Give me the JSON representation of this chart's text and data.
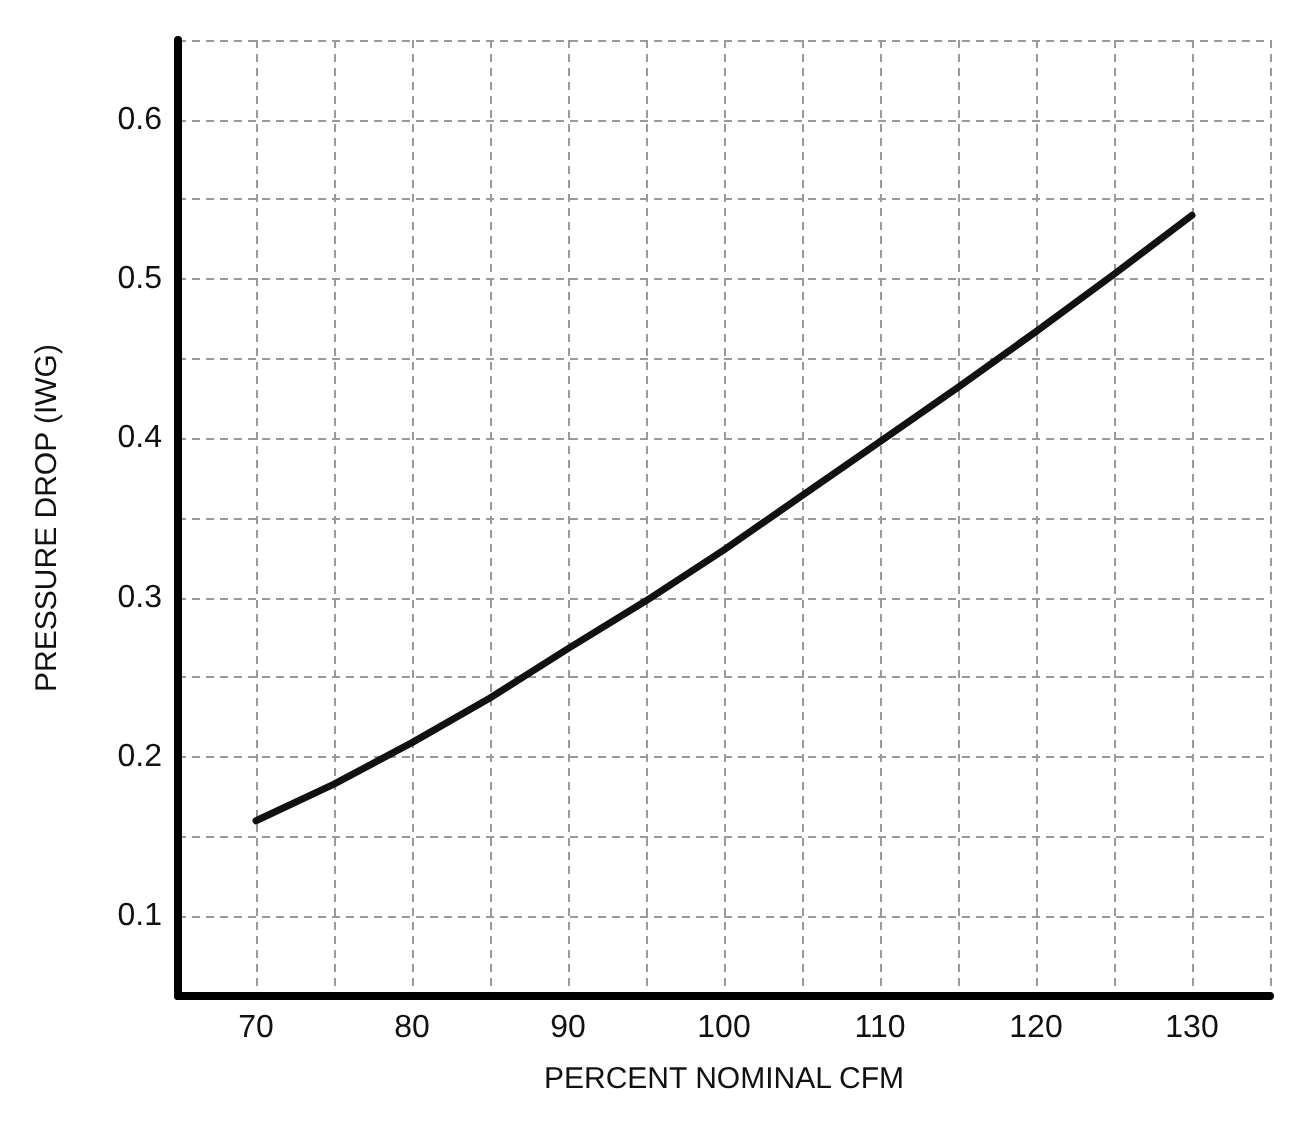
{
  "chart_data": {
    "type": "line",
    "xlabel": "PERCENT NOMINAL CFM",
    "ylabel": "PRESSURE DROP (IWG)",
    "x": [
      70,
      75,
      80,
      85,
      90,
      95,
      100,
      105,
      110,
      115,
      120,
      125,
      130
    ],
    "series": [
      {
        "color": "#111111",
        "values": [
          0.16,
          0.183,
          0.209,
          0.237,
          0.268,
          0.298,
          0.33,
          0.364,
          0.398,
          0.432,
          0.467,
          0.503,
          0.54
        ]
      }
    ],
    "xlim": [
      65,
      135
    ],
    "xticks": [
      {
        "value": 65,
        "label": null
      },
      70,
      {
        "value": 75,
        "label": null
      },
      80,
      {
        "value": 85,
        "label": null
      },
      90,
      {
        "value": 95,
        "label": null
      },
      100,
      {
        "value": 105,
        "label": null
      },
      110,
      {
        "value": 115,
        "label": null
      },
      120,
      {
        "value": 125,
        "label": null
      },
      130,
      {
        "value": 135,
        "label": null
      }
    ],
    "ylim": [
      0.05,
      0.65
    ],
    "yticks": [
      {
        "value": 0.05,
        "label": null
      },
      0.1,
      {
        "value": 0.15,
        "label": null
      },
      0.2,
      {
        "value": 0.25,
        "label": null
      },
      0.3,
      {
        "value": 0.35,
        "label": null
      },
      0.4,
      {
        "value": 0.45,
        "label": null
      },
      0.5,
      {
        "value": 0.55,
        "label": null
      },
      0.6,
      {
        "value": 0.65,
        "label": null
      }
    ],
    "grid": true,
    "marker": "none",
    "line_style": "solid"
  }
}
